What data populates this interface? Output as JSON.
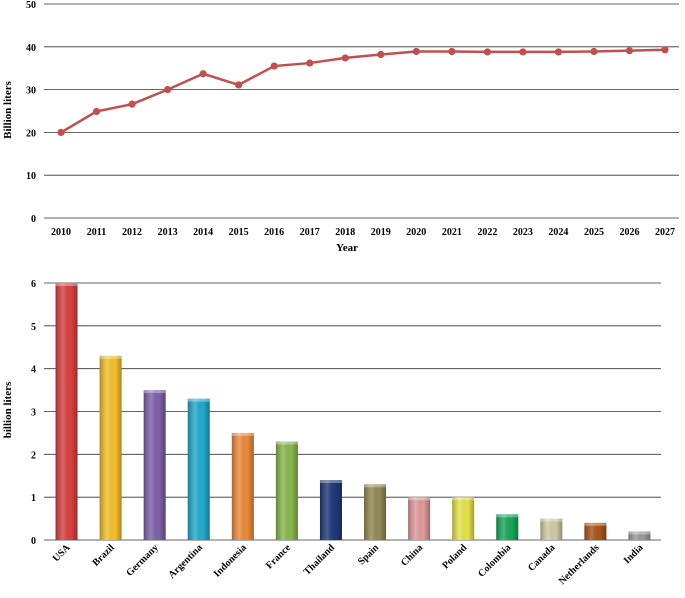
{
  "chart_data": [
    {
      "type": "line",
      "title": "",
      "xlabel": "Year",
      "ylabel": "Billion liters",
      "ylim": [
        0,
        50
      ],
      "yticks": [
        0,
        10,
        20,
        30,
        40,
        50
      ],
      "grid": true,
      "x": [
        "2010",
        "2011",
        "2012",
        "2013",
        "2014",
        "2015",
        "2016",
        "2017",
        "2018",
        "2019",
        "2020",
        "2021",
        "2022",
        "2023",
        "2024",
        "2025",
        "2026",
        "2027"
      ],
      "series": [
        {
          "values": [
            20,
            24.9,
            26.6,
            30,
            33.7,
            31.1,
            35.5,
            36.2,
            37.4,
            38.2,
            38.9,
            38.9,
            38.8,
            38.8,
            38.8,
            38.9,
            39.1,
            39.3
          ],
          "color": "#c0504d"
        }
      ]
    },
    {
      "type": "bar",
      "title": "",
      "xlabel": "",
      "ylabel": "billion liters",
      "ylim": [
        0,
        6
      ],
      "yticks": [
        0,
        1,
        2,
        3,
        4,
        5,
        6
      ],
      "grid": true,
      "categories": [
        "USA",
        "Brazil",
        "Germany",
        "Argentina",
        "Indonesia",
        "France",
        "Thailand",
        "Spain",
        "China",
        "Poland",
        "Colombia",
        "Canada",
        "Netherlands",
        "India"
      ],
      "values": [
        6,
        4.3,
        3.5,
        3.3,
        2.5,
        2.3,
        1.4,
        1.3,
        1.0,
        1.0,
        0.6,
        0.5,
        0.4,
        0.2
      ],
      "colors": [
        "#d9413f",
        "#f6c02a",
        "#7e62a8",
        "#22aacb",
        "#ee8a3a",
        "#88b84e",
        "#1f3a7a",
        "#948a55",
        "#e09a9a",
        "#e6e44a",
        "#17a85c",
        "#cfcba4",
        "#a9541a",
        "#9a9a9a"
      ]
    }
  ]
}
